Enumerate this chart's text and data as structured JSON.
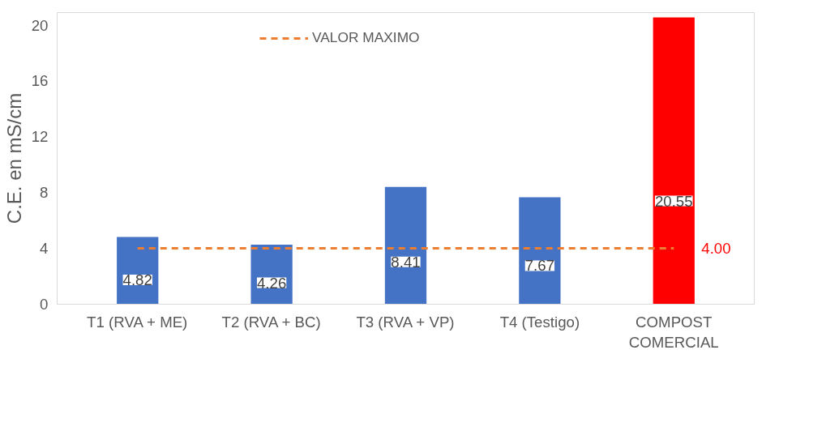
{
  "chart_data": {
    "type": "bar",
    "ylabel": "C.E. en mS/cm",
    "categories": [
      "T1 (RVA + ME)",
      "T2 (RVA + BC)",
      "T3 (RVA + VP)",
      "T4 (Testigo)",
      "COMPOST\nCOMERCIAL"
    ],
    "series": [
      {
        "values": [
          4.82,
          4.26,
          8.41,
          7.67,
          20.55
        ],
        "colors": [
          "#4472c4",
          "#4472c4",
          "#4472c4",
          "#4472c4",
          "#ff0000"
        ],
        "data_labels": true
      },
      {
        "type": "line",
        "name": "VALOR MAXIMO",
        "color": "#ed7d31",
        "line_style": "dashed",
        "values": [
          4,
          4,
          4,
          4,
          4
        ],
        "value_labels": [
          null,
          null,
          null,
          null,
          "4.00"
        ]
      }
    ],
    "ylim": [
      0,
      20.9
    ],
    "yticks": [
      0,
      4,
      8,
      12,
      16,
      20
    ],
    "grid": false,
    "legend": "top"
  }
}
